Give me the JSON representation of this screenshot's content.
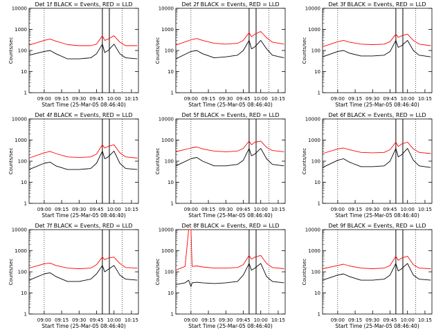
{
  "chart_data": [
    {
      "type": "line",
      "title": "Det 1f BLACK = Events, RED = LLD",
      "xlabel": "Start Time (25-Mar-05 08:46:40)",
      "ylabel": "Counts/sec",
      "x_ticks": [
        "09:00",
        "09:15",
        "09:30",
        "09:45",
        "10:00",
        "10:15"
      ],
      "y_ticks": [
        "1",
        "10",
        "100",
        "1000",
        "10000"
      ],
      "ylim": [
        1,
        10000
      ],
      "y_scale": "log",
      "series": [
        {
          "name": "LLD",
          "color": "#ff0000",
          "x": [
            "08:47",
            "09:00",
            "09:05",
            "09:10",
            "09:20",
            "09:30",
            "09:40",
            "09:45",
            "09:50",
            "09:52",
            "09:55",
            "10:00",
            "10:05",
            "10:10",
            "10:20"
          ],
          "values": [
            180,
            300,
            350,
            280,
            190,
            170,
            170,
            200,
            500,
            300,
            350,
            500,
            250,
            170,
            170
          ]
        },
        {
          "name": "Events",
          "color": "#000000",
          "x": [
            "08:47",
            "09:00",
            "09:05",
            "09:10",
            "09:20",
            "09:30",
            "09:40",
            "09:45",
            "09:50",
            "09:52",
            "09:55",
            "10:00",
            "10:05",
            "10:10",
            "10:20"
          ],
          "values": [
            60,
            90,
            100,
            70,
            40,
            40,
            45,
            70,
            200,
            80,
            100,
            200,
            70,
            45,
            40
          ]
        }
      ]
    },
    {
      "type": "line",
      "title": "Det 2f BLACK = Events, RED = LLD",
      "xlabel": "Start Time (25-Mar-05 08:46:40)",
      "ylabel": "Counts/sec",
      "x_ticks": [
        "09:00",
        "09:15",
        "09:30",
        "09:45",
        "10:00",
        "10:15"
      ],
      "y_ticks": [
        "1",
        "10",
        "100",
        "1000",
        "10000"
      ],
      "ylim": [
        1,
        10000
      ],
      "y_scale": "log",
      "series": [
        {
          "name": "LLD",
          "color": "#ff0000",
          "x": [
            "08:47",
            "09:00",
            "09:05",
            "09:10",
            "09:20",
            "09:30",
            "09:40",
            "09:45",
            "09:50",
            "09:52",
            "09:55",
            "10:00",
            "10:05",
            "10:10",
            "10:20"
          ],
          "values": [
            180,
            320,
            370,
            300,
            220,
            200,
            220,
            300,
            700,
            450,
            600,
            800,
            400,
            250,
            200
          ]
        },
        {
          "name": "Events",
          "color": "#000000",
          "x": [
            "08:47",
            "09:00",
            "09:05",
            "09:10",
            "09:20",
            "09:30",
            "09:40",
            "09:45",
            "09:50",
            "09:52",
            "09:55",
            "10:00",
            "10:05",
            "10:10",
            "10:20"
          ],
          "values": [
            40,
            90,
            100,
            70,
            45,
            50,
            60,
            100,
            300,
            120,
            150,
            300,
            120,
            60,
            45
          ]
        }
      ]
    },
    {
      "type": "line",
      "title": "Det 3f BLACK = Events, RED = LLD",
      "xlabel": "Start Time (25-Mar-05 08:46:40)",
      "ylabel": "Counts/sec",
      "x_ticks": [
        "09:00",
        "09:15",
        "09:30",
        "09:45",
        "10:00",
        "10:15"
      ],
      "y_ticks": [
        "1",
        "10",
        "100",
        "1000",
        "10000"
      ],
      "ylim": [
        1,
        10000
      ],
      "y_scale": "log",
      "series": [
        {
          "name": "LLD",
          "color": "#ff0000",
          "x": [
            "08:47",
            "09:00",
            "09:05",
            "09:10",
            "09:20",
            "09:30",
            "09:40",
            "09:45",
            "09:50",
            "09:52",
            "09:55",
            "10:00",
            "10:05",
            "10:10",
            "10:20"
          ],
          "values": [
            150,
            260,
            300,
            250,
            200,
            190,
            200,
            260,
            600,
            420,
            500,
            600,
            300,
            200,
            170
          ]
        },
        {
          "name": "Events",
          "color": "#000000",
          "x": [
            "08:47",
            "09:00",
            "09:05",
            "09:10",
            "09:20",
            "09:30",
            "09:40",
            "09:45",
            "09:50",
            "09:52",
            "09:55",
            "10:00",
            "10:05",
            "10:10",
            "10:20"
          ],
          "values": [
            50,
            90,
            100,
            75,
            55,
            55,
            60,
            90,
            300,
            140,
            170,
            300,
            100,
            60,
            50
          ]
        }
      ]
    },
    {
      "type": "line",
      "title": "Det 4f BLACK = Events, RED = LLD",
      "xlabel": "Start Time (25-Mar-05 08:46:40)",
      "ylabel": "Counts/sec",
      "x_ticks": [
        "09:00",
        "09:15",
        "09:30",
        "09:45",
        "10:00",
        "10:15"
      ],
      "y_ticks": [
        "1",
        "10",
        "100",
        "1000",
        "10000"
      ],
      "ylim": [
        1,
        10000
      ],
      "y_scale": "log",
      "series": [
        {
          "name": "LLD",
          "color": "#ff0000",
          "x": [
            "08:47",
            "09:00",
            "09:05",
            "09:10",
            "09:20",
            "09:30",
            "09:40",
            "09:45",
            "09:50",
            "09:52",
            "09:55",
            "10:00",
            "10:05",
            "10:10",
            "10:20"
          ],
          "values": [
            140,
            250,
            290,
            230,
            160,
            150,
            160,
            220,
            600,
            420,
            500,
            600,
            250,
            160,
            140
          ]
        },
        {
          "name": "Events",
          "color": "#000000",
          "x": [
            "08:47",
            "09:00",
            "09:05",
            "09:10",
            "09:20",
            "09:30",
            "09:40",
            "09:45",
            "09:50",
            "09:52",
            "09:55",
            "10:00",
            "10:05",
            "10:10",
            "10:20"
          ],
          "values": [
            40,
            80,
            90,
            60,
            40,
            40,
            45,
            80,
            300,
            130,
            160,
            300,
            80,
            45,
            40
          ]
        }
      ]
    },
    {
      "type": "line",
      "title": "Det 5f BLACK = Events, RED = LLD",
      "xlabel": "Start Time (25-Mar-05 08:46:40)",
      "ylabel": "Counts/sec",
      "x_ticks": [
        "09:00",
        "09:15",
        "09:30",
        "09:45",
        "10:00",
        "10:15"
      ],
      "y_ticks": [
        "1",
        "10",
        "100",
        "1000",
        "10000"
      ],
      "ylim": [
        1,
        10000
      ],
      "y_scale": "log",
      "series": [
        {
          "name": "LLD",
          "color": "#ff0000",
          "x": [
            "08:47",
            "09:00",
            "09:05",
            "09:10",
            "09:20",
            "09:30",
            "09:40",
            "09:45",
            "09:50",
            "09:52",
            "09:55",
            "10:00",
            "10:05",
            "10:10",
            "10:20"
          ],
          "values": [
            280,
            420,
            470,
            380,
            300,
            280,
            300,
            400,
            900,
            600,
            800,
            900,
            450,
            320,
            280
          ]
        },
        {
          "name": "Events",
          "color": "#000000",
          "x": [
            "08:47",
            "09:00",
            "09:05",
            "09:10",
            "09:20",
            "09:30",
            "09:40",
            "09:45",
            "09:50",
            "09:52",
            "09:55",
            "10:00",
            "10:05",
            "10:10",
            "10:20"
          ],
          "values": [
            60,
            130,
            150,
            100,
            60,
            60,
            70,
            110,
            400,
            180,
            220,
            400,
            130,
            70,
            60
          ]
        }
      ]
    },
    {
      "type": "line",
      "title": "Det 6f BLACK = Events, RED = LLD",
      "xlabel": "Start Time (25-Mar-05 08:46:40)",
      "ylabel": "Counts/sec",
      "x_ticks": [
        "09:00",
        "09:15",
        "09:30",
        "09:45",
        "10:00",
        "10:15"
      ],
      "y_ticks": [
        "1",
        "10",
        "100",
        "1000",
        "10000"
      ],
      "ylim": [
        1,
        10000
      ],
      "y_scale": "log",
      "series": [
        {
          "name": "LLD",
          "color": "#ff0000",
          "x": [
            "08:47",
            "09:00",
            "09:05",
            "09:10",
            "09:20",
            "09:30",
            "09:40",
            "09:45",
            "09:50",
            "09:52",
            "09:55",
            "10:00",
            "10:05",
            "10:10",
            "10:20"
          ],
          "values": [
            230,
            380,
            420,
            350,
            260,
            250,
            260,
            350,
            800,
            500,
            650,
            800,
            380,
            260,
            230
          ]
        },
        {
          "name": "Events",
          "color": "#000000",
          "x": [
            "08:47",
            "09:00",
            "09:05",
            "09:10",
            "09:20",
            "09:30",
            "09:40",
            "09:45",
            "09:50",
            "09:52",
            "09:55",
            "10:00",
            "10:05",
            "10:10",
            "10:20"
          ],
          "values": [
            50,
            110,
            130,
            90,
            55,
            55,
            60,
            100,
            400,
            160,
            200,
            400,
            110,
            60,
            50
          ]
        }
      ]
    },
    {
      "type": "line",
      "title": "Det 7f BLACK = Events, RED = LLD",
      "xlabel": "Start Time (25-Mar-05 08:46:40)",
      "ylabel": "Counts/sec",
      "x_ticks": [
        "09:00",
        "09:15",
        "09:30",
        "09:45",
        "10:00",
        "10:15"
      ],
      "y_ticks": [
        "1",
        "10",
        "100",
        "1000",
        "10000"
      ],
      "ylim": [
        1,
        10000
      ],
      "y_scale": "log",
      "series": [
        {
          "name": "LLD",
          "color": "#ff0000",
          "x": [
            "08:47",
            "09:00",
            "09:05",
            "09:10",
            "09:20",
            "09:30",
            "09:40",
            "09:45",
            "09:50",
            "09:52",
            "09:55",
            "10:00",
            "10:05",
            "10:10",
            "10:20"
          ],
          "values": [
            150,
            240,
            260,
            200,
            150,
            140,
            150,
            220,
            500,
            380,
            450,
            500,
            250,
            160,
            150
          ]
        },
        {
          "name": "Events",
          "color": "#000000",
          "x": [
            "08:47",
            "09:00",
            "09:05",
            "09:10",
            "09:20",
            "09:30",
            "09:40",
            "09:45",
            "09:50",
            "09:52",
            "09:55",
            "10:00",
            "10:05",
            "10:10",
            "10:20"
          ],
          "values": [
            40,
            80,
            90,
            60,
            35,
            35,
            45,
            80,
            200,
            100,
            130,
            200,
            70,
            45,
            40
          ]
        }
      ]
    },
    {
      "type": "line",
      "title": "Det 8f BLACK = Events, RED = LLD",
      "xlabel": "Start Time (25-Mar-05 08:46:40)",
      "ylabel": "Counts/sec",
      "x_ticks": [
        "09:00",
        "09:15",
        "09:30",
        "09:45",
        "10:00",
        "10:15"
      ],
      "y_ticks": [
        "1",
        "10",
        "100",
        "1000",
        "10000"
      ],
      "ylim": [
        1,
        10000
      ],
      "y_scale": "log",
      "series": [
        {
          "name": "LLD",
          "color": "#ff0000",
          "x": [
            "08:47",
            "08:55",
            "08:58",
            "09:00",
            "09:01",
            "09:05",
            "09:10",
            "09:20",
            "09:30",
            "09:40",
            "09:45",
            "09:50",
            "09:52",
            "09:55",
            "10:00",
            "10:05",
            "10:10",
            "10:20"
          ],
          "values": [
            120,
            180,
            10000,
            10000,
            180,
            190,
            170,
            150,
            150,
            160,
            220,
            600,
            400,
            500,
            600,
            250,
            160,
            140
          ]
        },
        {
          "name": "Events",
          "color": "#000000",
          "x": [
            "08:47",
            "08:55",
            "08:58",
            "09:00",
            "09:01",
            "09:05",
            "09:10",
            "09:20",
            "09:30",
            "09:40",
            "09:45",
            "09:50",
            "09:52",
            "09:55",
            "10:00",
            "10:05",
            "10:10",
            "10:20"
          ],
          "values": [
            25,
            30,
            40,
            20,
            30,
            32,
            30,
            28,
            30,
            35,
            70,
            250,
            120,
            150,
            250,
            60,
            35,
            30
          ]
        }
      ]
    },
    {
      "type": "line",
      "title": "Det 9f BLACK = Events, RED = LLD",
      "xlabel": "Start Time (25-Mar-05 08:46:40)",
      "ylabel": "Counts/sec",
      "x_ticks": [
        "09:00",
        "09:15",
        "09:30",
        "09:45",
        "10:00",
        "10:15"
      ],
      "y_ticks": [
        "1",
        "10",
        "100",
        "1000",
        "10000"
      ],
      "ylim": [
        1,
        10000
      ],
      "y_scale": "log",
      "series": [
        {
          "name": "LLD",
          "color": "#ff0000",
          "x": [
            "08:47",
            "09:00",
            "09:05",
            "09:10",
            "09:20",
            "09:30",
            "09:40",
            "09:45",
            "09:50",
            "09:52",
            "09:55",
            "10:00",
            "10:05",
            "10:10",
            "10:20"
          ],
          "values": [
            140,
            200,
            230,
            190,
            150,
            140,
            150,
            200,
            550,
            350,
            450,
            550,
            220,
            150,
            140
          ]
        },
        {
          "name": "Events",
          "color": "#000000",
          "x": [
            "08:47",
            "09:00",
            "09:05",
            "09:10",
            "09:20",
            "09:30",
            "09:40",
            "09:45",
            "09:50",
            "09:52",
            "09:55",
            "10:00",
            "10:05",
            "10:10",
            "10:20"
          ],
          "values": [
            40,
            70,
            80,
            60,
            40,
            40,
            45,
            70,
            250,
            110,
            140,
            250,
            70,
            45,
            40
          ]
        }
      ]
    }
  ]
}
